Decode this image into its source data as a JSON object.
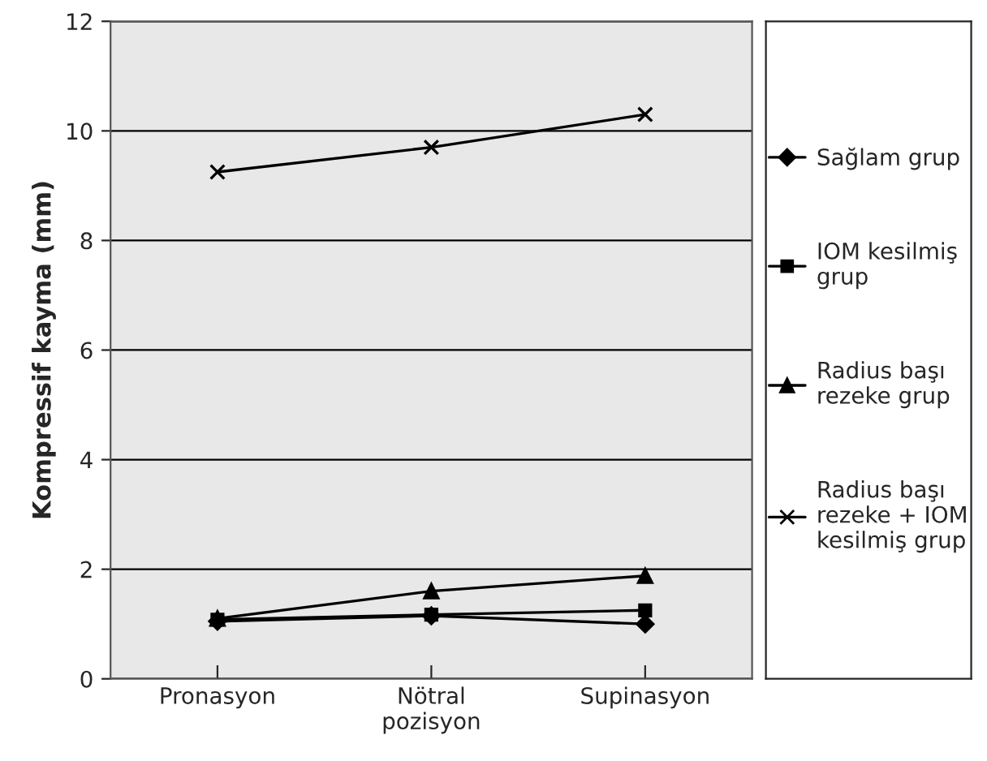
{
  "chart_data": {
    "type": "line",
    "ylabel": "Kompressif kayma (mm)",
    "categories": [
      "Pronasyon",
      "Nötral\npozisyon",
      "Supinasyon"
    ],
    "series": [
      {
        "name": "Sağlam grup",
        "color": "#000000",
        "marker": "diamond",
        "values": [
          1.05,
          1.15,
          1.0
        ]
      },
      {
        "name": "IOM kesilmiş\ngrup",
        "color": "#000000",
        "marker": "square",
        "values": [
          1.08,
          1.17,
          1.25
        ]
      },
      {
        "name": "Radius başı\nrezeke grup",
        "color": "#000000",
        "marker": "triangle",
        "values": [
          1.1,
          1.6,
          1.88
        ]
      },
      {
        "name": "Radius başı\nrezeke + IOM\nkesilmiş grup",
        "color": "#000000",
        "marker": "cross",
        "values": [
          9.25,
          9.7,
          10.3
        ]
      }
    ],
    "ylim": [
      0,
      12
    ],
    "yticks": [
      0,
      2,
      4,
      6,
      8,
      10,
      12
    ],
    "grid": "y",
    "legend": "right",
    "line_style": "solid"
  }
}
